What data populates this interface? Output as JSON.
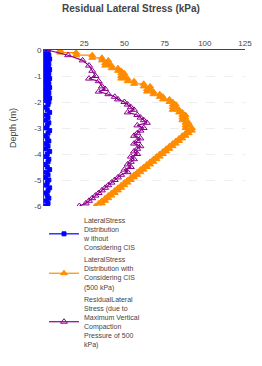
{
  "chart_data": {
    "type": "line",
    "title": "Residual Lateral Stress (kPa)",
    "ylabel": "Depth (m)",
    "xlim": [
      0,
      125
    ],
    "ylim": [
      -6,
      0
    ],
    "xticks": [
      25,
      50,
      75,
      100,
      125
    ],
    "yticks": [
      0,
      -1,
      -2,
      -3,
      -4,
      -5,
      -6
    ],
    "grid": "y",
    "legend": "bottom",
    "series": [
      {
        "name": "LateralStress\nDistribution\nw ithout\nConsidering CIS",
        "color": "#0000FF",
        "marker": "square",
        "x": [
          0.5,
          1.5,
          2.5,
          1.0,
          3.0,
          2.0,
          1.5,
          3.5,
          2.5,
          1.0,
          2.0,
          3.0,
          1.5,
          2.5,
          1.0,
          3.5,
          2.0,
          1.5,
          3.0,
          2.5,
          1.0,
          2.0,
          3.5,
          1.5,
          2.5,
          1.0,
          3.0,
          2.0,
          1.5,
          3.5,
          2.5,
          1.0,
          2.0,
          3.0,
          1.5,
          2.5,
          1.0,
          3.5,
          2.0,
          1.5,
          3.0,
          2.5,
          1.0,
          2.0,
          3.5,
          1.5,
          2.5,
          1.0,
          3.0,
          2.0,
          1.5,
          3.5,
          2.5,
          1.0,
          2.0,
          3.0,
          1.5,
          2.5,
          1.0,
          3.5,
          2.0,
          1.5,
          3.0,
          2.5,
          1.0,
          2.0,
          3.5,
          1.5,
          2.5,
          1.0,
          3.0,
          2.0,
          1.5,
          3.5,
          2.5,
          1.0,
          2.0,
          3.0,
          1.5,
          2.5,
          1.0
        ],
        "values": [
          0.0,
          -0.05,
          -0.1,
          -0.15,
          -0.2,
          -0.25,
          -0.3,
          -0.35,
          -0.4,
          -0.45,
          -0.5,
          -0.55,
          -0.6,
          -0.65,
          -0.7,
          -0.75,
          -0.8,
          -0.85,
          -0.9,
          -0.95,
          -1.0,
          -1.05,
          -1.1,
          -1.15,
          -1.2,
          -1.25,
          -1.3,
          -1.35,
          -1.4,
          -1.45,
          -1.5,
          -1.55,
          -1.6,
          -1.65,
          -1.7,
          -1.75,
          -1.8,
          -1.85,
          -1.9,
          -1.95,
          -2.0,
          -2.1,
          -2.2,
          -2.3,
          -2.4,
          -2.5,
          -2.6,
          -2.7,
          -2.8,
          -2.9,
          -3.0,
          -3.1,
          -3.2,
          -3.3,
          -3.4,
          -3.5,
          -3.6,
          -3.7,
          -3.8,
          -3.9,
          -4.0,
          -4.1,
          -4.2,
          -4.3,
          -4.4,
          -4.5,
          -4.6,
          -4.7,
          -4.8,
          -4.9,
          -5.0,
          -5.1,
          -5.2,
          -5.3,
          -5.4,
          -5.5,
          -5.6,
          -5.7,
          -5.8,
          -5.9,
          -6.0
        ]
      },
      {
        "name": "LateralStress\nDistribution with\nConsidering CIS\n(500 kPa)",
        "color": "#FF8C00",
        "marker": "triangle-up",
        "x": [
          10,
          10,
          20,
          20,
          30,
          30,
          36,
          36,
          40,
          40,
          38,
          38,
          42,
          42,
          46,
          46,
          48,
          48,
          50,
          50,
          48,
          48,
          52,
          52,
          56,
          56,
          62,
          62,
          66,
          66,
          64,
          64,
          68,
          68,
          72,
          72,
          74,
          74,
          78,
          78,
          80,
          80,
          82,
          82,
          80,
          80,
          84,
          84,
          86,
          86,
          88,
          88,
          86,
          86,
          88,
          88,
          90,
          90,
          88,
          88,
          92,
          92,
          90,
          90,
          88,
          88,
          86,
          86,
          84,
          84,
          82,
          82,
          80,
          80,
          78,
          78,
          76,
          76,
          74,
          74,
          72,
          72,
          70,
          70,
          68,
          68,
          66,
          66,
          64,
          64,
          62,
          62,
          60,
          60,
          58,
          58,
          56,
          56,
          54,
          54,
          52,
          52,
          50,
          50,
          48,
          48,
          46,
          46,
          44,
          44,
          42,
          42,
          40,
          40,
          38,
          38,
          36,
          36,
          34,
          32
        ],
        "values": [
          0.0,
          -0.1,
          -0.1,
          -0.2,
          -0.2,
          -0.3,
          -0.3,
          -0.4,
          -0.4,
          -0.5,
          -0.5,
          -0.6,
          -0.6,
          -0.7,
          -0.7,
          -0.8,
          -0.8,
          -0.9,
          -0.9,
          -1.0,
          -1.0,
          -1.1,
          -1.1,
          -1.2,
          -1.2,
          -1.3,
          -1.3,
          -1.4,
          -1.4,
          -1.5,
          -1.5,
          -1.6,
          -1.6,
          -1.7,
          -1.7,
          -1.8,
          -1.8,
          -1.9,
          -1.9,
          -2.0,
          -2.0,
          -2.1,
          -2.1,
          -2.2,
          -2.2,
          -2.3,
          -2.3,
          -2.4,
          -2.4,
          -2.5,
          -2.5,
          -2.6,
          -2.6,
          -2.7,
          -2.7,
          -2.8,
          -2.8,
          -2.9,
          -2.9,
          -3.0,
          -3.0,
          -3.1,
          -3.1,
          -3.2,
          -3.2,
          -3.3,
          -3.3,
          -3.4,
          -3.4,
          -3.5,
          -3.5,
          -3.6,
          -3.6,
          -3.7,
          -3.7,
          -3.8,
          -3.8,
          -3.9,
          -3.9,
          -4.0,
          -4.0,
          -4.1,
          -4.1,
          -4.2,
          -4.2,
          -4.3,
          -4.3,
          -4.4,
          -4.4,
          -4.5,
          -4.5,
          -4.6,
          -4.6,
          -4.7,
          -4.7,
          -4.8,
          -4.8,
          -4.9,
          -4.9,
          -5.0,
          -5.0,
          -5.1,
          -5.1,
          -5.2,
          -5.2,
          -5.3,
          -5.3,
          -5.4,
          -5.4,
          -5.5,
          -5.5,
          -5.6,
          -5.6,
          -5.7,
          -5.7,
          -5.8,
          -5.8,
          -5.9,
          -5.9,
          -6.0
        ]
      },
      {
        "name": "ResidualLateral\nStress (due to\nMaximum Vertical\nCompaction\nPressure of 500\nkPa)",
        "color": "#8B008B",
        "marker": "triangle-up-open",
        "x": [
          2,
          15,
          24,
          28,
          30,
          32,
          28,
          34,
          36,
          38,
          34,
          40,
          44,
          46,
          50,
          52,
          54,
          56,
          52,
          58,
          60,
          62,
          64,
          58,
          62,
          60,
          58,
          56,
          60,
          58,
          56,
          60,
          58,
          56,
          58,
          54,
          56,
          54,
          52,
          54,
          50,
          52,
          48,
          46,
          44,
          42,
          40,
          38,
          36,
          34,
          32,
          30,
          28,
          26,
          22
        ],
        "values": [
          0.0,
          -0.2,
          -0.4,
          -0.6,
          -0.8,
          -1.0,
          -1.1,
          -1.2,
          -1.4,
          -1.5,
          -1.6,
          -1.7,
          -1.8,
          -1.9,
          -2.0,
          -2.1,
          -2.2,
          -2.3,
          -2.4,
          -2.5,
          -2.6,
          -2.7,
          -2.8,
          -2.9,
          -3.0,
          -3.1,
          -3.2,
          -3.3,
          -3.4,
          -3.5,
          -3.6,
          -3.7,
          -3.8,
          -3.9,
          -4.0,
          -4.1,
          -4.2,
          -4.3,
          -4.4,
          -4.5,
          -4.6,
          -4.7,
          -4.8,
          -4.9,
          -5.0,
          -5.1,
          -5.2,
          -5.3,
          -5.4,
          -5.5,
          -5.6,
          -5.7,
          -5.8,
          -5.9,
          -6.0
        ]
      }
    ]
  }
}
